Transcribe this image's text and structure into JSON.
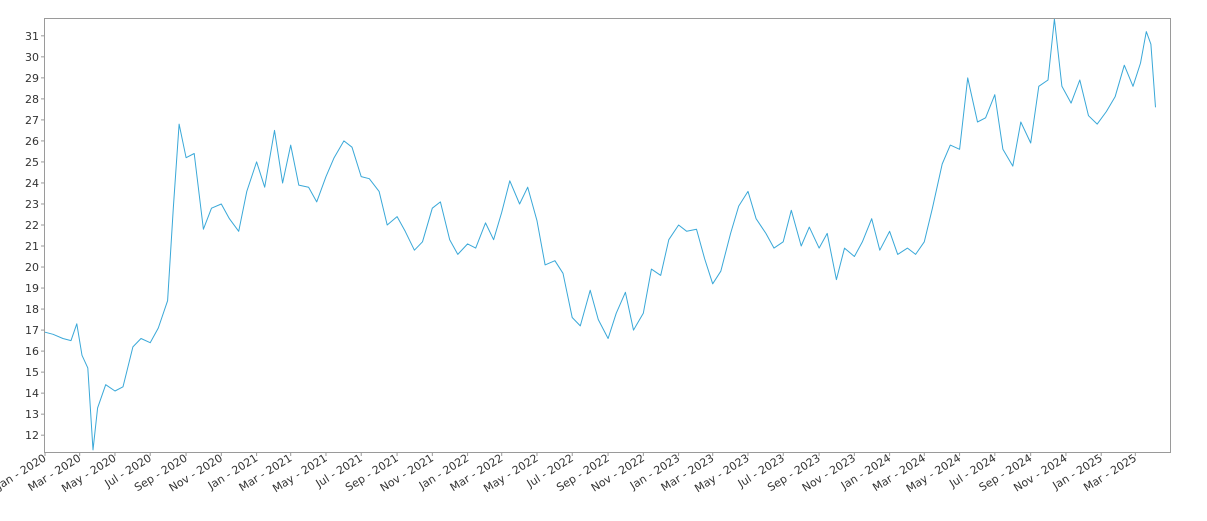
{
  "chart_data": {
    "type": "line",
    "title": "",
    "xlabel": "",
    "ylabel": "",
    "grid": false,
    "legend": "none",
    "x_range": [
      "2020-01-01",
      "2025-04-30"
    ],
    "ylim": [
      11.2,
      31.8
    ],
    "y_ticks": [
      12,
      13,
      14,
      15,
      16,
      17,
      18,
      19,
      20,
      21,
      22,
      23,
      24,
      25,
      26,
      27,
      28,
      29,
      30,
      31
    ],
    "x_tick_labels": [
      {
        "date": "2020-01-01",
        "label": "Jan - 2020"
      },
      {
        "date": "2020-03-01",
        "label": "Mar - 2020"
      },
      {
        "date": "2020-05-01",
        "label": "May - 2020"
      },
      {
        "date": "2020-07-01",
        "label": "Jul - 2020"
      },
      {
        "date": "2020-09-01",
        "label": "Sep - 2020"
      },
      {
        "date": "2020-11-01",
        "label": "Nov - 2020"
      },
      {
        "date": "2021-01-01",
        "label": "Jan - 2021"
      },
      {
        "date": "2021-03-01",
        "label": "Mar - 2021"
      },
      {
        "date": "2021-05-01",
        "label": "May - 2021"
      },
      {
        "date": "2021-07-01",
        "label": "Jul - 2021"
      },
      {
        "date": "2021-09-01",
        "label": "Sep - 2021"
      },
      {
        "date": "2021-11-01",
        "label": "Nov - 2021"
      },
      {
        "date": "2022-01-01",
        "label": "Jan - 2022"
      },
      {
        "date": "2022-03-01",
        "label": "Mar - 2022"
      },
      {
        "date": "2022-05-01",
        "label": "May - 2022"
      },
      {
        "date": "2022-07-01",
        "label": "Jul - 2022"
      },
      {
        "date": "2022-09-01",
        "label": "Sep - 2022"
      },
      {
        "date": "2022-11-01",
        "label": "Nov - 2022"
      },
      {
        "date": "2023-01-01",
        "label": "Jan - 2023"
      },
      {
        "date": "2023-03-01",
        "label": "Mar - 2023"
      },
      {
        "date": "2023-05-01",
        "label": "May - 2023"
      },
      {
        "date": "2023-07-01",
        "label": "Jul - 2023"
      },
      {
        "date": "2023-09-01",
        "label": "Sep - 2023"
      },
      {
        "date": "2023-11-01",
        "label": "Nov - 2023"
      },
      {
        "date": "2024-01-01",
        "label": "Jan - 2024"
      },
      {
        "date": "2024-03-01",
        "label": "Mar - 2024"
      },
      {
        "date": "2024-05-01",
        "label": "May - 2024"
      },
      {
        "date": "2024-07-01",
        "label": "Jul - 2024"
      },
      {
        "date": "2024-09-01",
        "label": "Sep - 2024"
      },
      {
        "date": "2024-11-01",
        "label": "Nov - 2024"
      },
      {
        "date": "2025-01-01",
        "label": "Jan - 2025"
      },
      {
        "date": "2025-03-01",
        "label": "Mar - 2025"
      }
    ],
    "series": [
      {
        "color": "#3aa8d8",
        "points": [
          [
            "2020-01-01",
            16.9
          ],
          [
            "2020-01-15",
            16.8
          ],
          [
            "2020-02-01",
            16.6
          ],
          [
            "2020-02-15",
            16.5
          ],
          [
            "2020-02-25",
            17.3
          ],
          [
            "2020-03-05",
            15.8
          ],
          [
            "2020-03-15",
            15.2
          ],
          [
            "2020-03-24",
            11.3
          ],
          [
            "2020-04-01",
            13.3
          ],
          [
            "2020-04-15",
            14.4
          ],
          [
            "2020-05-01",
            14.1
          ],
          [
            "2020-05-15",
            14.3
          ],
          [
            "2020-06-01",
            16.2
          ],
          [
            "2020-06-15",
            16.6
          ],
          [
            "2020-07-01",
            16.4
          ],
          [
            "2020-07-15",
            17.1
          ],
          [
            "2020-07-31",
            18.4
          ],
          [
            "2020-08-10",
            22.8
          ],
          [
            "2020-08-20",
            26.8
          ],
          [
            "2020-09-01",
            25.2
          ],
          [
            "2020-09-15",
            25.4
          ],
          [
            "2020-10-01",
            21.8
          ],
          [
            "2020-10-15",
            22.8
          ],
          [
            "2020-11-01",
            23.0
          ],
          [
            "2020-11-15",
            22.3
          ],
          [
            "2020-12-01",
            21.7
          ],
          [
            "2020-12-15",
            23.6
          ],
          [
            "2021-01-01",
            25.0
          ],
          [
            "2021-01-15",
            23.8
          ],
          [
            "2021-02-01",
            26.5
          ],
          [
            "2021-02-15",
            24.0
          ],
          [
            "2021-03-01",
            25.8
          ],
          [
            "2021-03-15",
            23.9
          ],
          [
            "2021-04-01",
            23.8
          ],
          [
            "2021-04-15",
            23.1
          ],
          [
            "2021-05-01",
            24.3
          ],
          [
            "2021-05-15",
            25.2
          ],
          [
            "2021-06-01",
            26.0
          ],
          [
            "2021-06-15",
            25.7
          ],
          [
            "2021-07-01",
            24.3
          ],
          [
            "2021-07-15",
            24.2
          ],
          [
            "2021-08-01",
            23.6
          ],
          [
            "2021-08-15",
            22.0
          ],
          [
            "2021-09-01",
            22.4
          ],
          [
            "2021-09-15",
            21.7
          ],
          [
            "2021-10-01",
            20.8
          ],
          [
            "2021-10-15",
            21.2
          ],
          [
            "2021-11-01",
            22.8
          ],
          [
            "2021-11-15",
            23.1
          ],
          [
            "2021-12-01",
            21.3
          ],
          [
            "2021-12-15",
            20.6
          ],
          [
            "2022-01-01",
            21.1
          ],
          [
            "2022-01-15",
            20.9
          ],
          [
            "2022-02-01",
            22.1
          ],
          [
            "2022-02-15",
            21.3
          ],
          [
            "2022-03-01",
            22.6
          ],
          [
            "2022-03-15",
            24.1
          ],
          [
            "2022-04-01",
            23.0
          ],
          [
            "2022-04-15",
            23.8
          ],
          [
            "2022-05-01",
            22.2
          ],
          [
            "2022-05-15",
            20.1
          ],
          [
            "2022-06-01",
            20.3
          ],
          [
            "2022-06-15",
            19.7
          ],
          [
            "2022-07-01",
            17.6
          ],
          [
            "2022-07-15",
            17.2
          ],
          [
            "2022-08-01",
            18.9
          ],
          [
            "2022-08-15",
            17.5
          ],
          [
            "2022-09-01",
            16.6
          ],
          [
            "2022-09-15",
            17.8
          ],
          [
            "2022-10-01",
            18.8
          ],
          [
            "2022-10-15",
            17.0
          ],
          [
            "2022-11-01",
            17.8
          ],
          [
            "2022-11-15",
            19.9
          ],
          [
            "2022-12-01",
            19.6
          ],
          [
            "2022-12-15",
            21.3
          ],
          [
            "2023-01-01",
            22.0
          ],
          [
            "2023-01-15",
            21.7
          ],
          [
            "2023-02-01",
            21.8
          ],
          [
            "2023-02-15",
            20.4
          ],
          [
            "2023-03-01",
            19.2
          ],
          [
            "2023-03-15",
            19.8
          ],
          [
            "2023-04-01",
            21.6
          ],
          [
            "2023-04-15",
            22.9
          ],
          [
            "2023-05-01",
            23.6
          ],
          [
            "2023-05-15",
            22.3
          ],
          [
            "2023-06-01",
            21.6
          ],
          [
            "2023-06-15",
            20.9
          ],
          [
            "2023-07-01",
            21.2
          ],
          [
            "2023-07-15",
            22.7
          ],
          [
            "2023-08-01",
            21.0
          ],
          [
            "2023-08-15",
            21.9
          ],
          [
            "2023-09-01",
            20.9
          ],
          [
            "2023-09-15",
            21.6
          ],
          [
            "2023-10-01",
            19.4
          ],
          [
            "2023-10-15",
            20.9
          ],
          [
            "2023-11-01",
            20.5
          ],
          [
            "2023-11-15",
            21.2
          ],
          [
            "2023-12-01",
            22.3
          ],
          [
            "2023-12-15",
            20.8
          ],
          [
            "2024-01-01",
            21.7
          ],
          [
            "2024-01-15",
            20.6
          ],
          [
            "2024-02-01",
            20.9
          ],
          [
            "2024-02-15",
            20.6
          ],
          [
            "2024-03-01",
            21.2
          ],
          [
            "2024-03-15",
            22.8
          ],
          [
            "2024-04-01",
            24.9
          ],
          [
            "2024-04-15",
            25.8
          ],
          [
            "2024-05-01",
            25.6
          ],
          [
            "2024-05-15",
            29.0
          ],
          [
            "2024-06-01",
            26.9
          ],
          [
            "2024-06-15",
            27.1
          ],
          [
            "2024-07-01",
            28.2
          ],
          [
            "2024-07-15",
            25.6
          ],
          [
            "2024-08-01",
            24.8
          ],
          [
            "2024-08-15",
            26.9
          ],
          [
            "2024-09-01",
            25.9
          ],
          [
            "2024-09-15",
            28.6
          ],
          [
            "2024-10-01",
            28.9
          ],
          [
            "2024-10-12",
            31.8
          ],
          [
            "2024-10-25",
            28.6
          ],
          [
            "2024-11-10",
            27.8
          ],
          [
            "2024-11-25",
            28.9
          ],
          [
            "2024-12-10",
            27.2
          ],
          [
            "2024-12-25",
            26.8
          ],
          [
            "2025-01-10",
            27.4
          ],
          [
            "2025-01-25",
            28.1
          ],
          [
            "2025-02-10",
            29.6
          ],
          [
            "2025-02-25",
            28.6
          ],
          [
            "2025-03-10",
            29.7
          ],
          [
            "2025-03-20",
            31.2
          ],
          [
            "2025-03-28",
            30.6
          ],
          [
            "2025-04-05",
            27.6
          ]
        ]
      }
    ]
  }
}
